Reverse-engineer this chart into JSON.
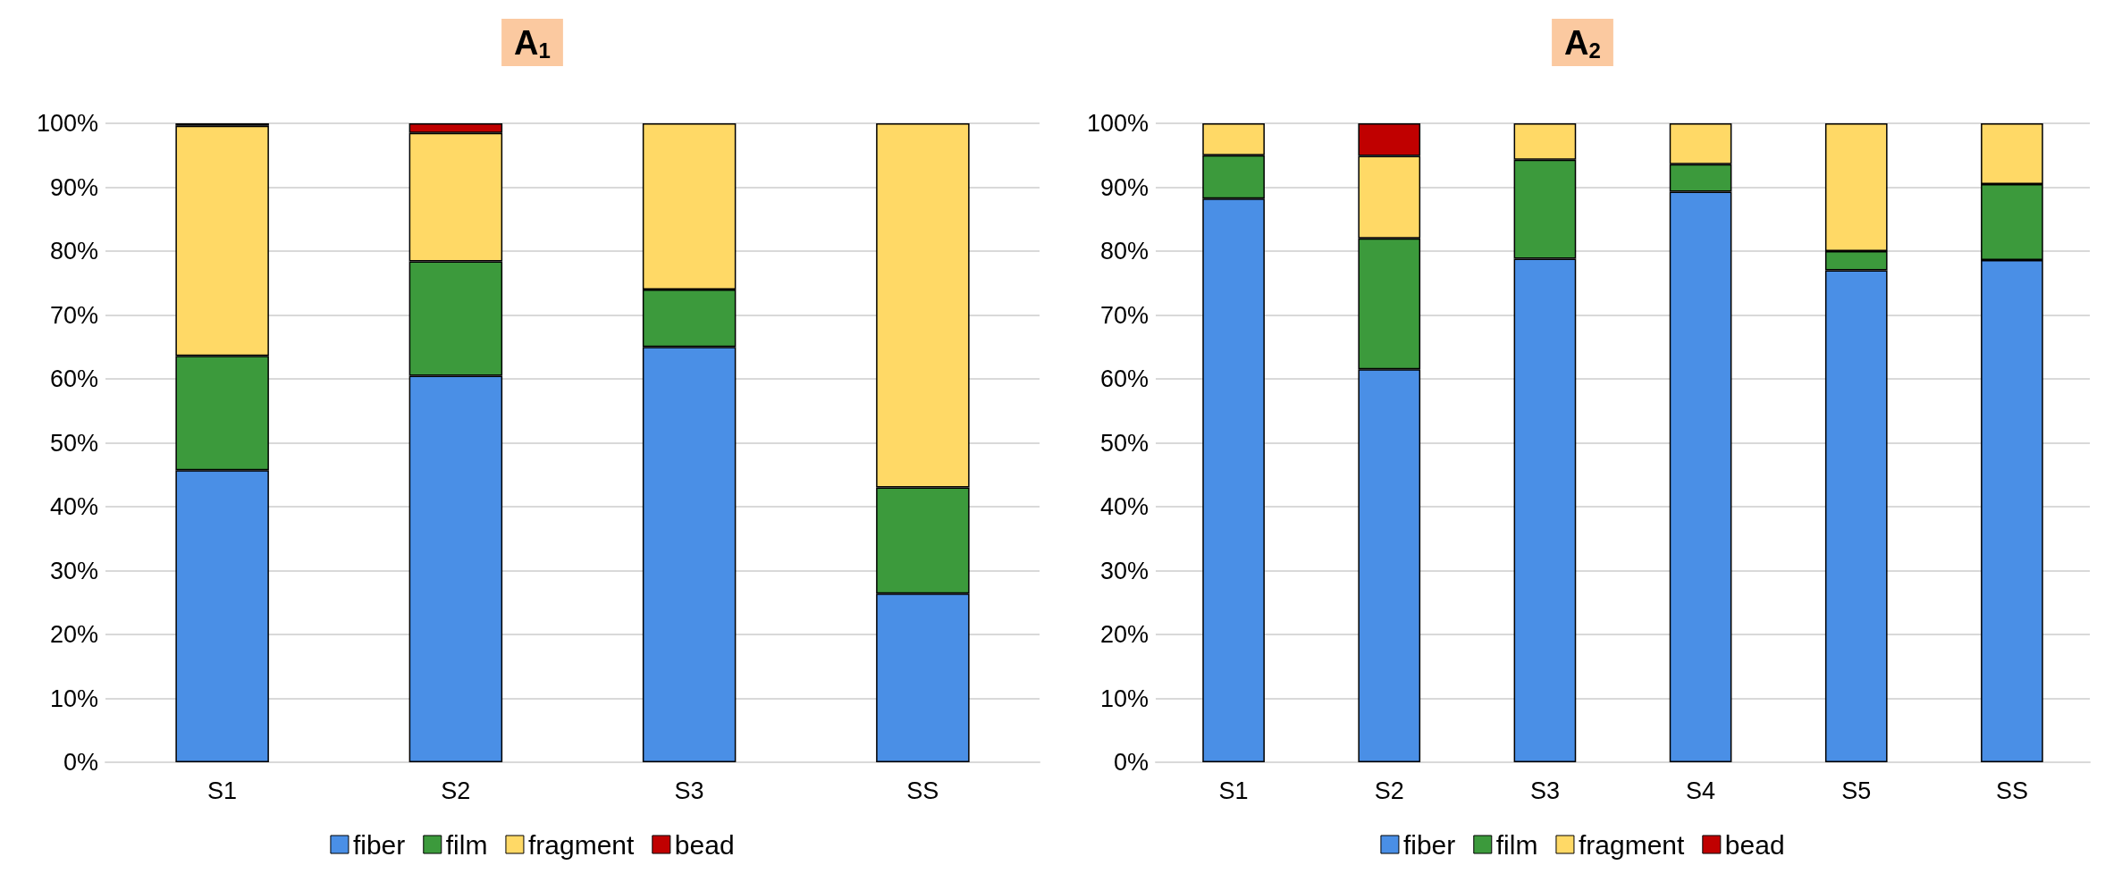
{
  "chart_data": [
    {
      "type": "bar",
      "title": "A$_{1}$",
      "categories": [
        "S1",
        "S2",
        "S3",
        "SS"
      ],
      "stacked": true,
      "series": [
        {
          "name": "fiber",
          "color": "#4a8fe6",
          "values": [
            45.7,
            60.5,
            65.0,
            26.4
          ]
        },
        {
          "name": "film",
          "color": "#3c9a3c",
          "values": [
            17.9,
            17.9,
            9.0,
            16.6
          ]
        },
        {
          "name": "fragment",
          "color": "#ffd966",
          "values": [
            36.0,
            20.1,
            26.0,
            57.0
          ]
        },
        {
          "name": "bead",
          "color": "#c00000",
          "values": [
            0.4,
            1.5,
            0,
            0
          ]
        }
      ],
      "ylim": [
        0,
        100
      ],
      "yticks": [
        {
          "value": 0,
          "label": "0%"
        },
        {
          "value": 10,
          "label": "10%"
        },
        {
          "value": 20,
          "label": "20%"
        },
        {
          "value": 30,
          "label": "30%"
        },
        {
          "value": 40,
          "label": "40%"
        },
        {
          "value": 50,
          "label": "50%"
        },
        {
          "value": 60,
          "label": "60%"
        },
        {
          "value": 70,
          "label": "70%"
        },
        {
          "value": 80,
          "label": "80%"
        },
        {
          "value": 90,
          "label": "90%"
        },
        {
          "value": 100,
          "label": "100%"
        }
      ],
      "grid": "y",
      "legend": "bottom"
    },
    {
      "type": "bar",
      "title": "A$_{2}$",
      "categories": [
        "S1",
        "S2",
        "S3",
        "S4",
        "S5",
        "SS"
      ],
      "stacked": true,
      "series": [
        {
          "name": "fiber",
          "color": "#4a8fe6",
          "values": [
            88.2,
            61.5,
            78.8,
            89.3,
            77.0,
            78.6
          ]
        },
        {
          "name": "film",
          "color": "#3c9a3c",
          "values": [
            6.8,
            20.5,
            15.5,
            4.3,
            3.0,
            11.9
          ]
        },
        {
          "name": "fragment",
          "color": "#ffd966",
          "values": [
            5.0,
            12.9,
            5.7,
            6.4,
            20.0,
            9.5
          ]
        },
        {
          "name": "bead",
          "color": "#c00000",
          "values": [
            0,
            5.1,
            0,
            0,
            0,
            0
          ]
        }
      ],
      "ylim": [
        0,
        100
      ],
      "yticks": [
        {
          "value": 0,
          "label": "0%"
        },
        {
          "value": 10,
          "label": "10%"
        },
        {
          "value": 20,
          "label": "20%"
        },
        {
          "value": 30,
          "label": "30%"
        },
        {
          "value": 40,
          "label": "40%"
        },
        {
          "value": 50,
          "label": "50%"
        },
        {
          "value": 60,
          "label": "60%"
        },
        {
          "value": 70,
          "label": "70%"
        },
        {
          "value": 80,
          "label": "80%"
        },
        {
          "value": 90,
          "label": "90%"
        },
        {
          "value": 100,
          "label": "100%"
        }
      ],
      "grid": "y",
      "legend": "bottom"
    }
  ]
}
